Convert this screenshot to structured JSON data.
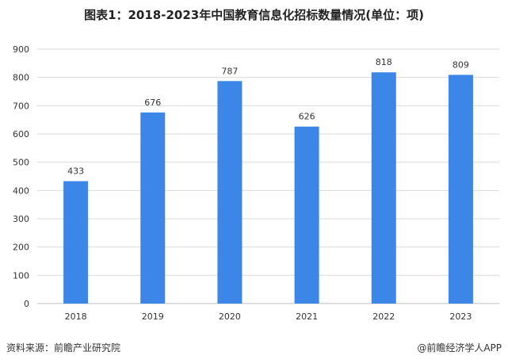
{
  "title": "图表1：2018-2023年中国教育信息化招标数量情况(单位：项)",
  "footer": {
    "source": "资料来源：前瞻产业研究院",
    "credit": "@前瞻经济学人APP"
  },
  "colors": {
    "bar": "#3b86e6",
    "grid": "#d9d9d9",
    "axis": "#bfbfbf",
    "text": "#333333"
  },
  "chart_data": {
    "type": "bar",
    "categories": [
      "2018",
      "2019",
      "2020",
      "2021",
      "2022",
      "2023"
    ],
    "values": [
      433,
      676,
      787,
      626,
      818,
      809
    ],
    "title": "图表1：2018-2023年中国教育信息化招标数量情况(单位：项)",
    "xlabel": "",
    "ylabel": "",
    "ylim": [
      0,
      900
    ],
    "yticks": [
      0,
      100,
      200,
      300,
      400,
      500,
      600,
      700,
      800,
      900
    ],
    "grid": true,
    "legend": "none",
    "data_labels": true
  }
}
